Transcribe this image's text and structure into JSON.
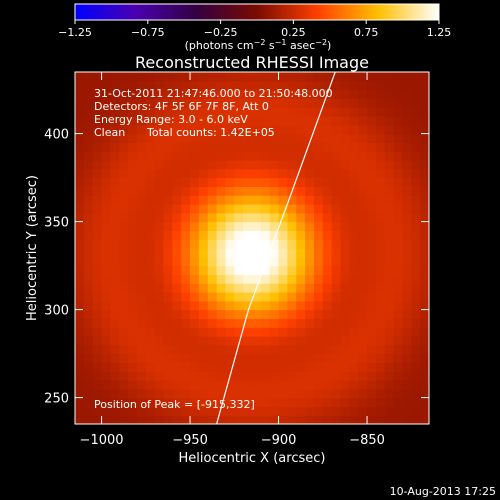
{
  "chart_data": {
    "type": "heatmap",
    "title": "Reconstructed RHESSI Image",
    "xlabel": "Heliocentric X (arcsec)",
    "ylabel": "Heliocentric Y (arcsec)",
    "xlim": [
      -1015,
      -815
    ],
    "ylim": [
      235,
      435
    ],
    "x_ticks": [
      -1000,
      -950,
      -900,
      -850
    ],
    "x_tick_labels": [
      "−1000",
      "−950",
      "−900",
      "−850"
    ],
    "y_ticks": [
      250,
      300,
      350,
      400
    ],
    "y_tick_labels": [
      "250",
      "300",
      "350",
      "400"
    ],
    "colorbar": {
      "min": -1.25,
      "max": 1.25,
      "ticks": [
        -1.25,
        -0.75,
        -0.25,
        0.25,
        0.75,
        1.25
      ],
      "tick_labels": [
        "−1.25",
        "−0.75",
        "−0.25",
        "0.25",
        "0.75",
        "1.25"
      ],
      "label_main": "(photons cm",
      "label_exp1": "−2",
      "label_mid": " s",
      "label_exp2": "−1",
      "label_mid2": " asec",
      "label_exp3": "−2",
      "label_end": ")",
      "colormap": [
        "#0000ff",
        "#4a00b0",
        "#330040",
        "#7a0a00",
        "#ff4000",
        "#ffc000",
        "#ffffff"
      ]
    },
    "source": {
      "x": -915,
      "y": 332,
      "peak": 1.25
    },
    "limb_line": [
      [
        -935,
        235
      ],
      [
        -917,
        300
      ],
      [
        -895,
        360
      ],
      [
        -868,
        435
      ]
    ],
    "grid": false,
    "annotations": {
      "time": "31-Oct-2011 21:47:46.000 to 21:50:48.000",
      "detectors": "Detectors: 4F 5F 6F 7F 8F, Att 0",
      "energy": "Energy Range: 3.0 - 6.0 keV",
      "method": "Clean",
      "counts": "Total counts: 1.42E+05",
      "peak": "Position of Peak = [-915,332]"
    }
  },
  "footer": {
    "date": "10-Aug-2013 17:25"
  }
}
